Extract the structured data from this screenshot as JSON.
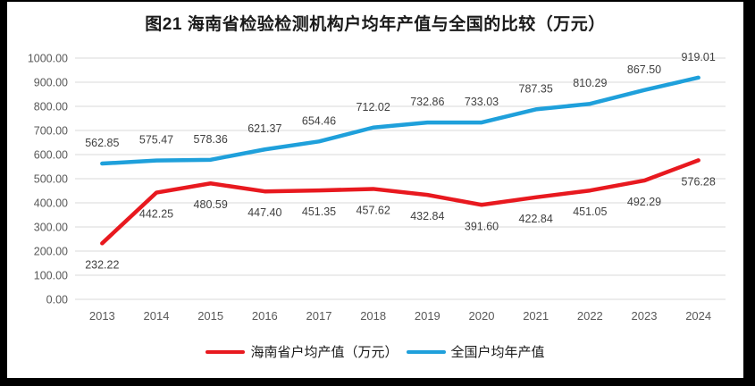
{
  "title": "图21  海南省检验检测机构户均年产值与全国的比较（万元）",
  "chart_data": {
    "type": "line",
    "title": "图21  海南省检验检测机构户均年产值与全国的比较（万元）",
    "categories": [
      "2013",
      "2014",
      "2015",
      "2016",
      "2017",
      "2018",
      "2019",
      "2020",
      "2021",
      "2022",
      "2023",
      "2024"
    ],
    "series": [
      {
        "id": "hainan-average-output",
        "name": "海南省户均产值（万元）",
        "color": "#E8191F",
        "data_label_position": "below",
        "values": [
          232.22,
          442.25,
          480.59,
          447.4,
          451.35,
          457.62,
          432.84,
          391.6,
          422.84,
          451.05,
          492.29,
          576.28
        ]
      },
      {
        "id": "national-average-output",
        "name": "全国户均年产值",
        "color": "#1FA0DB",
        "data_label_position": "above",
        "values": [
          562.85,
          575.47,
          578.36,
          621.37,
          654.46,
          712.02,
          732.86,
          733.03,
          787.35,
          810.29,
          867.5,
          919.01
        ]
      }
    ],
    "ylim": [
      0,
      1000
    ],
    "ytick_step": 100,
    "value_decimals": 2,
    "grid": true,
    "gridline_color": "#D9D9D9",
    "axis_tick_color": "#595959",
    "data_label_color": "#404040",
    "legend_position": "bottom"
  },
  "frame": {
    "border_color": "#000000",
    "canvas_color": "#FFFFFF"
  }
}
